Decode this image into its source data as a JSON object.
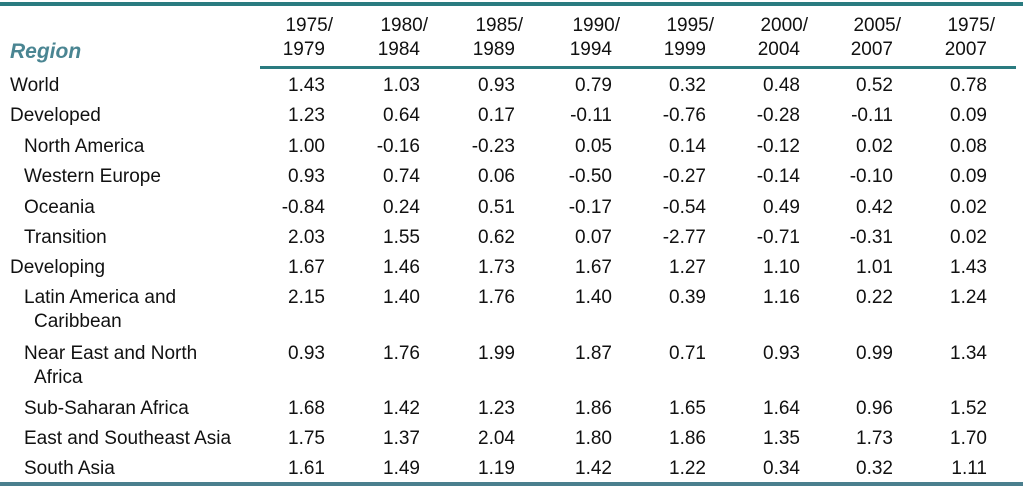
{
  "table": {
    "region_header": "Region",
    "columns": [
      [
        "1975/",
        "1979"
      ],
      [
        "1980/",
        "1984"
      ],
      [
        "1985/",
        "1989"
      ],
      [
        "1990/",
        "1994"
      ],
      [
        "1995/",
        "1999"
      ],
      [
        "2000/",
        "2004"
      ],
      [
        "2005/",
        "2007"
      ],
      [
        "1975/",
        "2007"
      ]
    ],
    "rows": [
      {
        "region": "World",
        "indent": false,
        "values": [
          "1.43",
          "1.03",
          "0.93",
          "0.79",
          "0.32",
          "0.48",
          "0.52",
          "0.78"
        ]
      },
      {
        "region": "Developed",
        "indent": false,
        "values": [
          "1.23",
          "0.64",
          "0.17",
          "-0.11",
          "-0.76",
          "-0.28",
          "-0.11",
          "0.09"
        ]
      },
      {
        "region": "North America",
        "indent": true,
        "values": [
          "1.00",
          "-0.16",
          "-0.23",
          "0.05",
          "0.14",
          "-0.12",
          "0.02",
          "0.08"
        ]
      },
      {
        "region": "Western Europe",
        "indent": true,
        "values": [
          "0.93",
          "0.74",
          "0.06",
          "-0.50",
          "-0.27",
          "-0.14",
          "-0.10",
          "0.09"
        ]
      },
      {
        "region": "Oceania",
        "indent": true,
        "values": [
          "-0.84",
          "0.24",
          "0.51",
          "-0.17",
          "-0.54",
          "0.49",
          "0.42",
          "0.02"
        ]
      },
      {
        "region": "Transition",
        "indent": true,
        "values": [
          "2.03",
          "1.55",
          "0.62",
          "0.07",
          "-2.77",
          "-0.71",
          "-0.31",
          "0.02"
        ]
      },
      {
        "region": "Developing",
        "indent": false,
        "values": [
          "1.67",
          "1.46",
          "1.73",
          "1.67",
          "1.27",
          "1.10",
          "1.01",
          "1.43"
        ]
      },
      {
        "region": "Latin America and",
        "region_cont": "Caribbean",
        "indent": true,
        "values": [
          "2.15",
          "1.40",
          "1.76",
          "1.40",
          "0.39",
          "1.16",
          "0.22",
          "1.24"
        ]
      },
      {
        "region": "Near East and North",
        "region_cont": "Africa",
        "indent": true,
        "values": [
          "0.93",
          "1.76",
          "1.99",
          "1.87",
          "0.71",
          "0.93",
          "0.99",
          "1.34"
        ]
      },
      {
        "region": "Sub-Saharan Africa",
        "indent": true,
        "values": [
          "1.68",
          "1.42",
          "1.23",
          "1.86",
          "1.65",
          "1.64",
          "0.96",
          "1.52"
        ]
      },
      {
        "region": "East and Southeast Asia",
        "indent": true,
        "values": [
          "1.75",
          "1.37",
          "2.04",
          "1.80",
          "1.86",
          "1.35",
          "1.73",
          "1.70"
        ]
      },
      {
        "region": "South Asia",
        "indent": true,
        "values": [
          "1.61",
          "1.49",
          "1.19",
          "1.42",
          "1.22",
          "0.34",
          "0.32",
          "1.11"
        ]
      }
    ]
  },
  "colors": {
    "accent": "#2a7b80",
    "header_text": "#4a8592"
  }
}
